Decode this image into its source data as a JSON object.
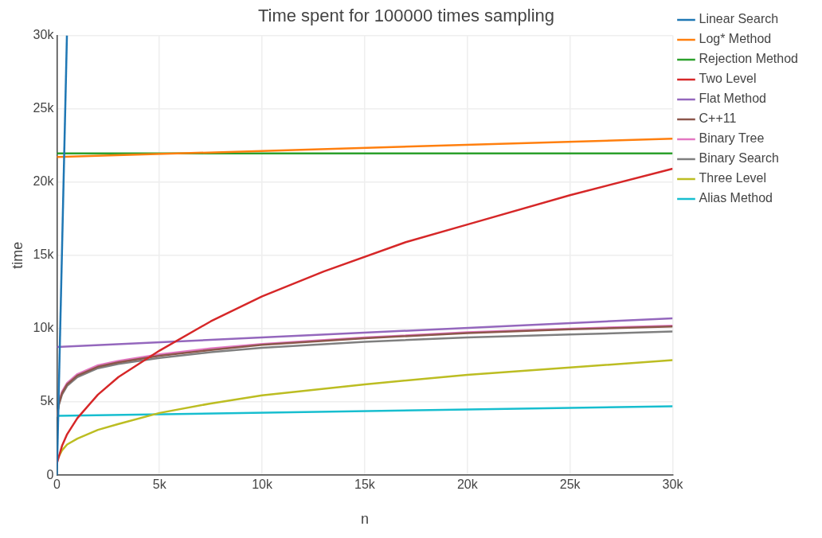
{
  "chart_data": {
    "type": "line",
    "title": "Time spent for 100000 times sampling",
    "xlabel": "n",
    "ylabel": "time",
    "xlim": [
      0,
      30000
    ],
    "xticks": [
      0,
      {
        "value": 5000,
        "label": "5k"
      },
      {
        "value": 10000,
        "label": "10k"
      },
      {
        "value": 15000,
        "label": "15k"
      },
      {
        "value": 20000,
        "label": "20k"
      },
      {
        "value": 25000,
        "label": "25k"
      },
      {
        "value": 30000,
        "label": "30k"
      }
    ],
    "ylim": [
      0,
      30000
    ],
    "yticks": [
      0,
      {
        "value": 5000,
        "label": "5k"
      },
      {
        "value": 10000,
        "label": "10k"
      },
      {
        "value": 15000,
        "label": "15k"
      },
      {
        "value": 20000,
        "label": "20k"
      },
      {
        "value": 25000,
        "label": "25k"
      },
      {
        "value": 30000,
        "label": "30k"
      }
    ],
    "grid": true,
    "legend": "right",
    "marker": "none",
    "line_style": "solid",
    "series": [
      {
        "name": "Linear Search",
        "color": "#1f77b4",
        "x": [
          0,
          490
        ],
        "values": [
          0,
          30000
        ]
      },
      {
        "name": "Log* Method",
        "color": "#ff7f0e",
        "x": [
          0,
          30000
        ],
        "values": [
          21700,
          22950
        ]
      },
      {
        "name": "Rejection Method",
        "color": "#2ca02c",
        "x": [
          0,
          30000
        ],
        "values": [
          21950,
          21950
        ]
      },
      {
        "name": "Two Level",
        "color": "#d62728",
        "x": [
          0,
          250,
          500,
          1000,
          2000,
          3000,
          5000,
          7500,
          10000,
          13000,
          17000,
          20000,
          25000,
          30000
        ],
        "values": [
          800,
          2000,
          2800,
          3900,
          5500,
          6700,
          8500,
          10500,
          12200,
          13900,
          15900,
          17100,
          19100,
          20900
        ]
      },
      {
        "name": "Flat Method",
        "color": "#9467bd",
        "x": [
          0,
          30000
        ],
        "values": [
          8750,
          10700
        ]
      },
      {
        "name": "C++11",
        "color": "#8c564b",
        "x": [
          0,
          100,
          250,
          500,
          1000,
          2000,
          3000,
          5000,
          7500,
          10000,
          15000,
          20000,
          25000,
          30000
        ],
        "values": [
          4000,
          4900,
          5600,
          6200,
          6800,
          7400,
          7700,
          8150,
          8550,
          8900,
          9350,
          9700,
          9950,
          10150
        ]
      },
      {
        "name": "Binary Tree",
        "color": "#e377c2",
        "x": [
          100,
          250,
          500,
          1000,
          2000,
          3000,
          5000,
          7500,
          10000,
          15000,
          20000,
          25000,
          30000
        ],
        "values": [
          5000,
          5700,
          6300,
          6900,
          7500,
          7800,
          8250,
          8650,
          8950,
          9400,
          9750,
          10000,
          10200
        ]
      },
      {
        "name": "Binary Search",
        "color": "#7f7f7f",
        "x": [
          0,
          100,
          250,
          500,
          1000,
          2000,
          3000,
          5000,
          7500,
          10000,
          15000,
          20000,
          25000,
          30000
        ],
        "values": [
          4000,
          4800,
          5500,
          6100,
          6700,
          7300,
          7600,
          8000,
          8400,
          8700,
          9100,
          9400,
          9600,
          9800
        ]
      },
      {
        "name": "Three Level",
        "color": "#bcbd22",
        "x": [
          100,
          250,
          500,
          1000,
          2000,
          3000,
          5000,
          7500,
          10000,
          15000,
          20000,
          25000,
          30000
        ],
        "values": [
          1300,
          1700,
          2100,
          2500,
          3100,
          3500,
          4250,
          4900,
          5450,
          6200,
          6850,
          7350,
          7850
        ]
      },
      {
        "name": "Alias Method",
        "color": "#17becf",
        "x": [
          0,
          30000
        ],
        "values": [
          4050,
          4700
        ]
      }
    ]
  }
}
